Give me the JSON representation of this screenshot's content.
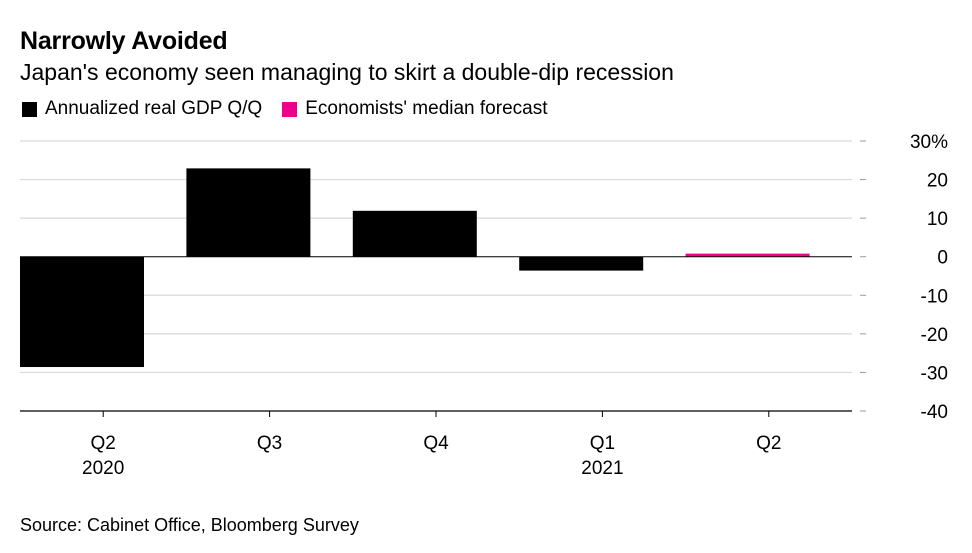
{
  "header": {
    "title": "Narrowly Avoided",
    "subtitle": "Japan's economy seen managing to skirt a double-dip recession"
  },
  "legend": [
    {
      "label": "Annualized real GDP Q/Q",
      "color": "#000000"
    },
    {
      "label": "Economists' median forecast",
      "color": "#ec008c"
    }
  ],
  "footer": {
    "source": "Source: Cabinet Office, Bloomberg Survey"
  },
  "chart_data": {
    "type": "bar",
    "categories": [
      "Q2",
      "Q3",
      "Q4",
      "Q1",
      "Q2"
    ],
    "category_years": [
      "2020",
      "",
      "",
      "2021",
      ""
    ],
    "series": [
      {
        "name": "Annualized real GDP Q/Q",
        "color": "#000000",
        "values": [
          -28.6,
          22.9,
          11.9,
          -3.6,
          null
        ]
      },
      {
        "name": "Economists' median forecast",
        "color": "#ec008c",
        "values": [
          null,
          null,
          null,
          null,
          0.8
        ]
      }
    ],
    "ylim": [
      -40,
      30
    ],
    "yticks": [
      -40,
      -30,
      -20,
      -10,
      0,
      10,
      20,
      30
    ],
    "ytick_labels": [
      "-40",
      "-30",
      "-20",
      "-10",
      "0",
      "10",
      "20",
      "30%"
    ],
    "grid": true,
    "y_axis_side": "right",
    "legend_position": "top-left"
  }
}
